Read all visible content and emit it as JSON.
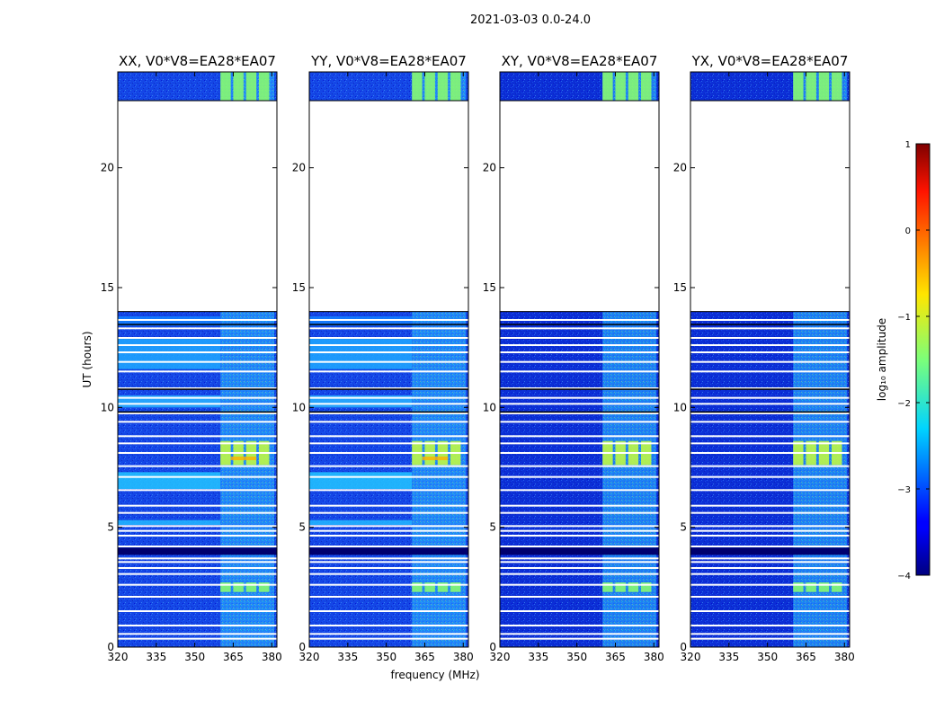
{
  "chart_data": {
    "type": "heatmap",
    "title": "2021-03-03 0.0-24.0",
    "xlabel": "frequency (MHz)",
    "ylabel": "UT (hours)",
    "xlim": [
      320,
      382
    ],
    "ylim": [
      0,
      24
    ],
    "xticks": [
      320,
      335,
      350,
      365,
      380
    ],
    "yticks": [
      0,
      5,
      10,
      15,
      20
    ],
    "panels": [
      {
        "title": "XX, V0*V8=EA28*EA07",
        "pol": "XX"
      },
      {
        "title": "YY, V0*V8=EA28*EA07",
        "pol": "YY"
      },
      {
        "title": "XY, V0*V8=EA28*EA07",
        "pol": "XY"
      },
      {
        "title": "YX, V0*V8=EA28*EA07",
        "pol": "YX"
      }
    ],
    "colorbar": {
      "label": "log₁₀ amplitude",
      "range": [
        -4,
        1
      ],
      "ticks": [
        "1",
        "0",
        "−1",
        "−2",
        "−3",
        "−4"
      ],
      "colormap": "jet"
    },
    "data_gaps_ut": [
      [
        14.0,
        22.8
      ]
    ],
    "bright_band_mhz": [
      360,
      381
    ],
    "flagged_rows_ut": [
      0.35,
      0.55,
      0.9,
      1.5,
      2.1,
      2.6,
      3.05,
      3.3,
      3.55,
      3.7,
      4.2,
      4.65,
      4.85,
      5.05,
      5.6,
      5.9,
      6.55,
      7.1,
      7.55,
      8.1,
      8.5,
      8.8,
      9.4,
      9.75,
      10.15,
      10.4,
      10.8,
      11.5,
      11.9,
      12.3,
      12.6,
      12.9,
      13.3,
      13.65
    ]
  }
}
